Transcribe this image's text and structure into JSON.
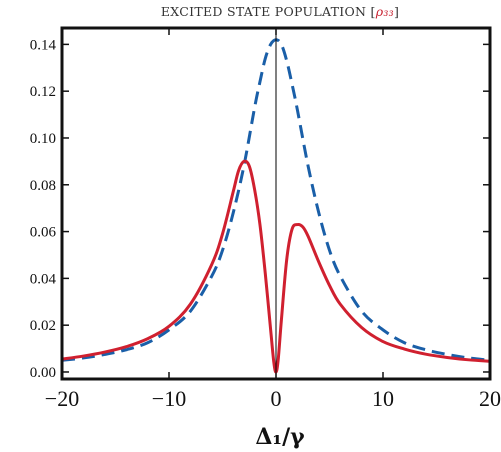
{
  "chart_data": {
    "type": "line",
    "title": {
      "prefix": "EXCITED STATE POPULATION [",
      "symbol": "ρ₃₃",
      "suffix": "]",
      "symbol_color": "#c8202f"
    },
    "xlabel": "Δ₁/γ",
    "ylabel": "",
    "xlim": [
      -20,
      20
    ],
    "ylim": [
      -0.003,
      0.147
    ],
    "xticks": [
      {
        "value": -20,
        "label": "−20"
      },
      {
        "value": -10,
        "label": "−10"
      },
      {
        "value": 0,
        "label": "0"
      },
      {
        "value": 10,
        "label": "10"
      },
      {
        "value": 20,
        "label": "20"
      }
    ],
    "yticks": [
      {
        "value": 0.0,
        "label": "0.00"
      },
      {
        "value": 0.02,
        "label": "0.02"
      },
      {
        "value": 0.04,
        "label": "0.04"
      },
      {
        "value": 0.06,
        "label": "0.06"
      },
      {
        "value": 0.08,
        "label": "0.08"
      },
      {
        "value": 0.1,
        "label": "0.10"
      },
      {
        "value": 0.12,
        "label": "0.12"
      },
      {
        "value": 0.14,
        "label": "0.14"
      }
    ],
    "vertical_line_at": 0,
    "grid": false,
    "series": [
      {
        "style": "dashed",
        "color": "#1a5fa8",
        "x": [
          -20,
          -18,
          -16,
          -14,
          -12,
          -10,
          -8,
          -6,
          -5,
          -4,
          -3,
          -2,
          -1.5,
          -1,
          -0.5,
          0,
          0.5,
          1,
          1.5,
          2,
          3,
          4,
          5,
          6,
          8,
          10,
          12,
          14,
          16,
          18,
          20
        ],
        "y": [
          0.005,
          0.006,
          0.0075,
          0.0095,
          0.0125,
          0.018,
          0.026,
          0.041,
          0.052,
          0.068,
          0.088,
          0.113,
          0.124,
          0.134,
          0.14,
          0.142,
          0.14,
          0.133,
          0.123,
          0.112,
          0.088,
          0.068,
          0.052,
          0.041,
          0.026,
          0.018,
          0.0125,
          0.0095,
          0.0075,
          0.006,
          0.005
        ]
      },
      {
        "style": "solid",
        "color": "#d0202f",
        "x": [
          -20,
          -18,
          -16,
          -14,
          -12,
          -10,
          -8,
          -6,
          -5,
          -4,
          -3.5,
          -3,
          -2.5,
          -2,
          -1.5,
          -1,
          -0.5,
          -0.2,
          0,
          0.2,
          0.5,
          1,
          1.5,
          2,
          2.5,
          3,
          4,
          5,
          6,
          8,
          10,
          12,
          14,
          16,
          18,
          20
        ],
        "y": [
          0.0055,
          0.0068,
          0.0085,
          0.0108,
          0.0142,
          0.0195,
          0.029,
          0.046,
          0.059,
          0.077,
          0.086,
          0.09,
          0.088,
          0.078,
          0.063,
          0.042,
          0.018,
          0.004,
          0.0,
          0.005,
          0.022,
          0.048,
          0.061,
          0.063,
          0.062,
          0.058,
          0.047,
          0.037,
          0.029,
          0.019,
          0.013,
          0.0098,
          0.0076,
          0.0062,
          0.0052,
          0.0046
        ]
      }
    ]
  }
}
